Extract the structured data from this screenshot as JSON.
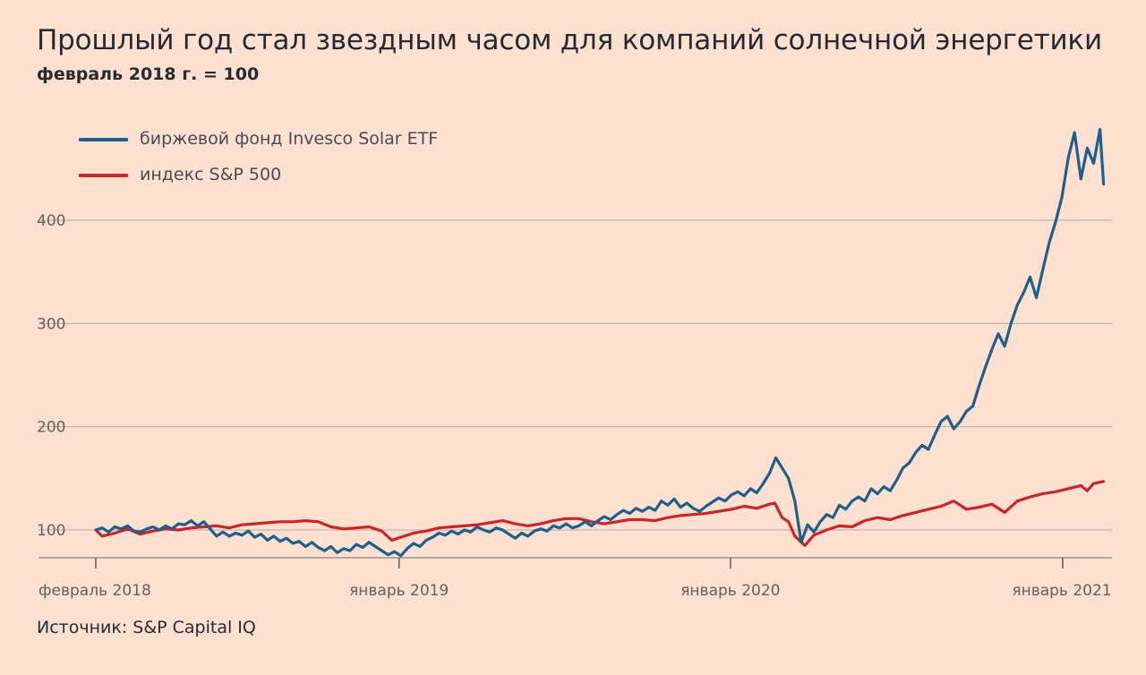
{
  "title": "Прошлый год стал звездным часом для компаний солнечной энергетики",
  "subtitle": "февраль 2018 г. = 100",
  "source": "Источник: S&P Capital IQ",
  "colors": {
    "background": "#fde0d0",
    "solar": "#1f5f8b",
    "sp500": "#cc2529",
    "grid": "#b8aca7"
  },
  "chart_data": {
    "type": "line",
    "title": "Прошлый год стал звездным часом для компаний солнечной энергетики",
    "subtitle": "февраль 2018 г. = 100",
    "xlabel": "",
    "ylabel": "",
    "y_ticks": [
      "100",
      "200",
      "300",
      "400"
    ],
    "y_tick_values": [
      100,
      200,
      300,
      400
    ],
    "x_ticks": [
      "февраль 2018",
      "январь 2019",
      "январь 2020",
      "январь 2021"
    ],
    "x_tick_dates": [
      "2018-02-01",
      "2019-01-01",
      "2020-01-01",
      "2021-01-01"
    ],
    "xlim": [
      "2018-02-01",
      "2021-02-15"
    ],
    "ylim": [
      73,
      500
    ],
    "grid": "horizontal",
    "legend_position": "top-left",
    "series": [
      {
        "name": "биржевой фонд Invesco Solar ETF",
        "color": "#1f5f8b",
        "points": [
          [
            "2018-02-01",
            100
          ],
          [
            "2018-02-08",
            102
          ],
          [
            "2018-02-15",
            98
          ],
          [
            "2018-02-22",
            103
          ],
          [
            "2018-03-01",
            101
          ],
          [
            "2018-03-08",
            104
          ],
          [
            "2018-03-15",
            99
          ],
          [
            "2018-03-22",
            98
          ],
          [
            "2018-03-29",
            101
          ],
          [
            "2018-04-05",
            103
          ],
          [
            "2018-04-12",
            100
          ],
          [
            "2018-04-19",
            104
          ],
          [
            "2018-04-26",
            101
          ],
          [
            "2018-05-03",
            106
          ],
          [
            "2018-05-10",
            105
          ],
          [
            "2018-05-17",
            109
          ],
          [
            "2018-05-24",
            104
          ],
          [
            "2018-05-31",
            108
          ],
          [
            "2018-06-07",
            101
          ],
          [
            "2018-06-14",
            94
          ],
          [
            "2018-06-21",
            98
          ],
          [
            "2018-06-28",
            94
          ],
          [
            "2018-07-05",
            97
          ],
          [
            "2018-07-12",
            95
          ],
          [
            "2018-07-19",
            99
          ],
          [
            "2018-07-26",
            93
          ],
          [
            "2018-08-02",
            96
          ],
          [
            "2018-08-09",
            90
          ],
          [
            "2018-08-16",
            94
          ],
          [
            "2018-08-23",
            89
          ],
          [
            "2018-08-30",
            92
          ],
          [
            "2018-09-06",
            87
          ],
          [
            "2018-09-13",
            89
          ],
          [
            "2018-09-20",
            84
          ],
          [
            "2018-09-27",
            88
          ],
          [
            "2018-10-04",
            83
          ],
          [
            "2018-10-11",
            80
          ],
          [
            "2018-10-18",
            84
          ],
          [
            "2018-10-25",
            78
          ],
          [
            "2018-11-01",
            82
          ],
          [
            "2018-11-08",
            80
          ],
          [
            "2018-11-15",
            86
          ],
          [
            "2018-11-22",
            83
          ],
          [
            "2018-11-29",
            88
          ],
          [
            "2018-12-06",
            84
          ],
          [
            "2018-12-13",
            80
          ],
          [
            "2018-12-20",
            76
          ],
          [
            "2018-12-27",
            79
          ],
          [
            "2019-01-03",
            75
          ],
          [
            "2019-01-10",
            82
          ],
          [
            "2019-01-17",
            87
          ],
          [
            "2019-01-24",
            84
          ],
          [
            "2019-01-31",
            90
          ],
          [
            "2019-02-07",
            93
          ],
          [
            "2019-02-14",
            97
          ],
          [
            "2019-02-21",
            95
          ],
          [
            "2019-02-28",
            99
          ],
          [
            "2019-03-07",
            96
          ],
          [
            "2019-03-14",
            100
          ],
          [
            "2019-03-21",
            98
          ],
          [
            "2019-03-28",
            103
          ],
          [
            "2019-04-04",
            100
          ],
          [
            "2019-04-11",
            98
          ],
          [
            "2019-04-18",
            102
          ],
          [
            "2019-04-25",
            100
          ],
          [
            "2019-05-02",
            96
          ],
          [
            "2019-05-09",
            92
          ],
          [
            "2019-05-16",
            97
          ],
          [
            "2019-05-23",
            94
          ],
          [
            "2019-05-30",
            99
          ],
          [
            "2019-06-06",
            101
          ],
          [
            "2019-06-13",
            99
          ],
          [
            "2019-06-20",
            104
          ],
          [
            "2019-06-27",
            102
          ],
          [
            "2019-07-04",
            106
          ],
          [
            "2019-07-11",
            102
          ],
          [
            "2019-07-18",
            104
          ],
          [
            "2019-07-25",
            108
          ],
          [
            "2019-08-01",
            104
          ],
          [
            "2019-08-08",
            109
          ],
          [
            "2019-08-15",
            113
          ],
          [
            "2019-08-22",
            110
          ],
          [
            "2019-08-29",
            115
          ],
          [
            "2019-09-05",
            119
          ],
          [
            "2019-09-12",
            116
          ],
          [
            "2019-09-19",
            121
          ],
          [
            "2019-09-26",
            118
          ],
          [
            "2019-10-03",
            122
          ],
          [
            "2019-10-10",
            119
          ],
          [
            "2019-10-17",
            128
          ],
          [
            "2019-10-24",
            124
          ],
          [
            "2019-10-31",
            130
          ],
          [
            "2019-11-07",
            122
          ],
          [
            "2019-11-14",
            126
          ],
          [
            "2019-11-21",
            121
          ],
          [
            "2019-11-28",
            118
          ],
          [
            "2019-12-05",
            123
          ],
          [
            "2019-12-12",
            127
          ],
          [
            "2019-12-19",
            131
          ],
          [
            "2019-12-26",
            128
          ],
          [
            "2020-01-02",
            134
          ],
          [
            "2020-01-09",
            137
          ],
          [
            "2020-01-16",
            133
          ],
          [
            "2020-01-23",
            140
          ],
          [
            "2020-01-30",
            136
          ],
          [
            "2020-02-06",
            145
          ],
          [
            "2020-02-13",
            155
          ],
          [
            "2020-02-20",
            170
          ],
          [
            "2020-02-27",
            160
          ],
          [
            "2020-03-05",
            150
          ],
          [
            "2020-03-12",
            128
          ],
          [
            "2020-03-19",
            88
          ],
          [
            "2020-03-26",
            105
          ],
          [
            "2020-04-02",
            98
          ],
          [
            "2020-04-09",
            108
          ],
          [
            "2020-04-16",
            115
          ],
          [
            "2020-04-23",
            112
          ],
          [
            "2020-04-30",
            124
          ],
          [
            "2020-05-07",
            120
          ],
          [
            "2020-05-14",
            128
          ],
          [
            "2020-05-21",
            132
          ],
          [
            "2020-05-28",
            128
          ],
          [
            "2020-06-04",
            140
          ],
          [
            "2020-06-11",
            135
          ],
          [
            "2020-06-18",
            142
          ],
          [
            "2020-06-25",
            138
          ],
          [
            "2020-07-02",
            148
          ],
          [
            "2020-07-09",
            160
          ],
          [
            "2020-07-16",
            165
          ],
          [
            "2020-07-23",
            175
          ],
          [
            "2020-07-30",
            182
          ],
          [
            "2020-08-06",
            178
          ],
          [
            "2020-08-13",
            192
          ],
          [
            "2020-08-20",
            205
          ],
          [
            "2020-08-27",
            210
          ],
          [
            "2020-09-03",
            198
          ],
          [
            "2020-09-10",
            205
          ],
          [
            "2020-09-17",
            215
          ],
          [
            "2020-09-24",
            220
          ],
          [
            "2020-10-01",
            240
          ],
          [
            "2020-10-08",
            258
          ],
          [
            "2020-10-15",
            275
          ],
          [
            "2020-10-22",
            290
          ],
          [
            "2020-10-29",
            278
          ],
          [
            "2020-11-05",
            300
          ],
          [
            "2020-11-12",
            318
          ],
          [
            "2020-11-19",
            330
          ],
          [
            "2020-11-26",
            345
          ],
          [
            "2020-12-03",
            325
          ],
          [
            "2020-12-10",
            352
          ],
          [
            "2020-12-17",
            378
          ],
          [
            "2020-12-24",
            398
          ],
          [
            "2020-12-31",
            422
          ],
          [
            "2021-01-07",
            460
          ],
          [
            "2021-01-14",
            485
          ],
          [
            "2021-01-21",
            440
          ],
          [
            "2021-01-28",
            470
          ],
          [
            "2021-02-04",
            455
          ],
          [
            "2021-02-11",
            488
          ],
          [
            "2021-02-15",
            435
          ]
        ]
      },
      {
        "name": "индекс S&P 500",
        "color": "#cc2529",
        "points": [
          [
            "2018-02-01",
            100
          ],
          [
            "2018-02-08",
            94
          ],
          [
            "2018-02-22",
            97
          ],
          [
            "2018-03-08",
            101
          ],
          [
            "2018-03-22",
            96
          ],
          [
            "2018-04-05",
            99
          ],
          [
            "2018-04-19",
            101
          ],
          [
            "2018-05-03",
            100
          ],
          [
            "2018-05-17",
            102
          ],
          [
            "2018-05-31",
            103
          ],
          [
            "2018-06-14",
            104
          ],
          [
            "2018-06-28",
            102
          ],
          [
            "2018-07-12",
            105
          ],
          [
            "2018-07-26",
            106
          ],
          [
            "2018-08-09",
            107
          ],
          [
            "2018-08-23",
            108
          ],
          [
            "2018-09-06",
            108
          ],
          [
            "2018-09-20",
            109
          ],
          [
            "2018-10-04",
            108
          ],
          [
            "2018-10-18",
            103
          ],
          [
            "2018-11-01",
            101
          ],
          [
            "2018-11-15",
            102
          ],
          [
            "2018-11-29",
            103
          ],
          [
            "2018-12-13",
            99
          ],
          [
            "2018-12-24",
            90
          ],
          [
            "2019-01-03",
            93
          ],
          [
            "2019-01-17",
            97
          ],
          [
            "2019-01-31",
            99
          ],
          [
            "2019-02-14",
            102
          ],
          [
            "2019-02-28",
            103
          ],
          [
            "2019-03-14",
            104
          ],
          [
            "2019-03-28",
            105
          ],
          [
            "2019-04-11",
            107
          ],
          [
            "2019-04-25",
            109
          ],
          [
            "2019-05-09",
            106
          ],
          [
            "2019-05-23",
            104
          ],
          [
            "2019-06-06",
            106
          ],
          [
            "2019-06-20",
            109
          ],
          [
            "2019-07-04",
            111
          ],
          [
            "2019-07-18",
            111
          ],
          [
            "2019-08-01",
            108
          ],
          [
            "2019-08-15",
            106
          ],
          [
            "2019-08-29",
            108
          ],
          [
            "2019-09-12",
            110
          ],
          [
            "2019-09-26",
            110
          ],
          [
            "2019-10-10",
            109
          ],
          [
            "2019-10-24",
            112
          ],
          [
            "2019-11-07",
            114
          ],
          [
            "2019-11-21",
            115
          ],
          [
            "2019-12-05",
            116
          ],
          [
            "2019-12-19",
            118
          ],
          [
            "2020-01-02",
            120
          ],
          [
            "2020-01-16",
            123
          ],
          [
            "2020-01-30",
            121
          ],
          [
            "2020-02-13",
            125
          ],
          [
            "2020-02-19",
            126
          ],
          [
            "2020-02-27",
            112
          ],
          [
            "2020-03-05",
            108
          ],
          [
            "2020-03-12",
            94
          ],
          [
            "2020-03-23",
            85
          ],
          [
            "2020-04-02",
            95
          ],
          [
            "2020-04-16",
            100
          ],
          [
            "2020-04-30",
            104
          ],
          [
            "2020-05-14",
            103
          ],
          [
            "2020-05-28",
            109
          ],
          [
            "2020-06-11",
            112
          ],
          [
            "2020-06-25",
            110
          ],
          [
            "2020-07-09",
            114
          ],
          [
            "2020-07-23",
            117
          ],
          [
            "2020-08-06",
            120
          ],
          [
            "2020-08-20",
            123
          ],
          [
            "2020-09-03",
            128
          ],
          [
            "2020-09-17",
            120
          ],
          [
            "2020-10-01",
            122
          ],
          [
            "2020-10-15",
            125
          ],
          [
            "2020-10-29",
            117
          ],
          [
            "2020-11-12",
            128
          ],
          [
            "2020-11-26",
            132
          ],
          [
            "2020-12-10",
            135
          ],
          [
            "2020-12-24",
            137
          ],
          [
            "2021-01-07",
            140
          ],
          [
            "2021-01-21",
            143
          ],
          [
            "2021-01-28",
            138
          ],
          [
            "2021-02-04",
            145
          ],
          [
            "2021-02-15",
            147
          ]
        ]
      }
    ]
  }
}
